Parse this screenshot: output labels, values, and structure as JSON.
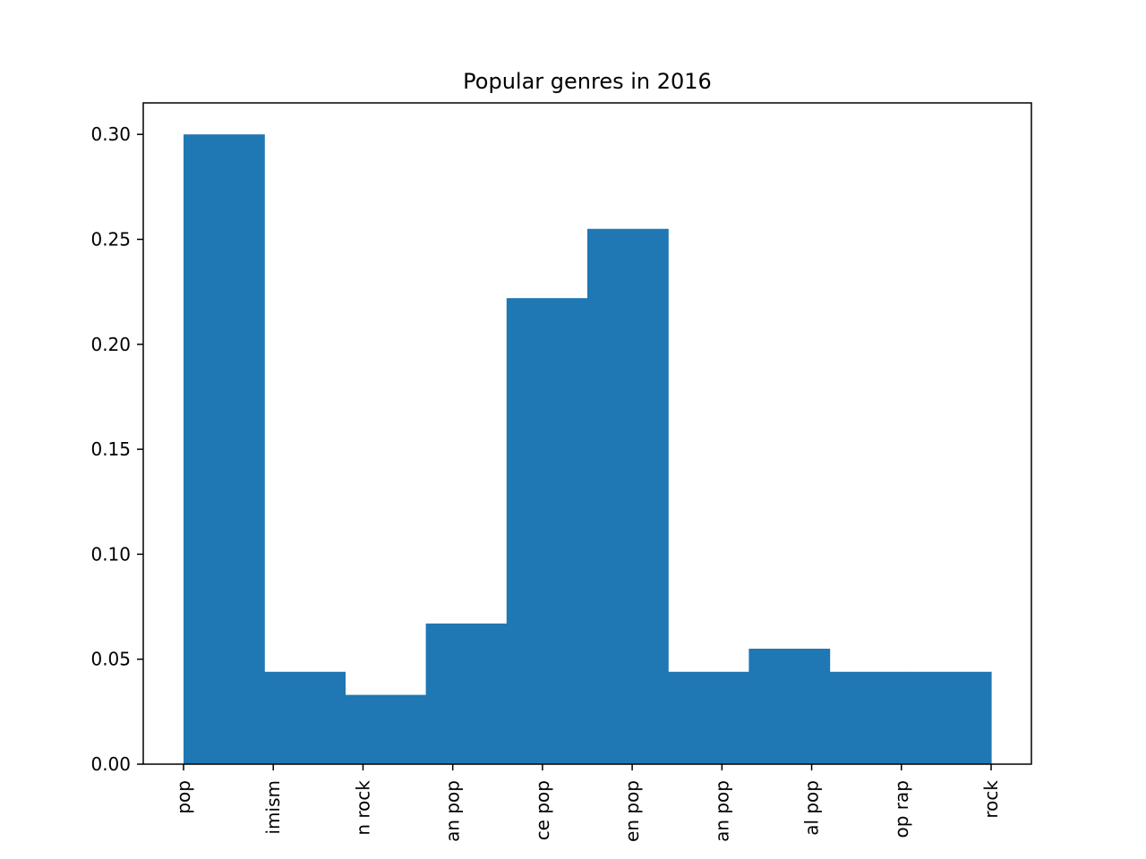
{
  "chart_data": {
    "type": "bar",
    "title": "Popular genres in 2016",
    "xlabel": "",
    "ylabel": "",
    "ylim": [
      0,
      0.315
    ],
    "y_ticks": [
      "0.00",
      "0.05",
      "0.10",
      "0.15",
      "0.20",
      "0.25",
      "0.30"
    ],
    "x_tick_labels": [
      "pop",
      "imism",
      "n rock",
      "an pop",
      "ce pop",
      "en pop",
      "an pop",
      "al pop",
      "op rap",
      "rock"
    ],
    "values": [
      0.3,
      0.044,
      0.033,
      0.067,
      0.222,
      0.255,
      0.044,
      0.055,
      0.044,
      0.044
    ],
    "bar_color": "#1f77b4",
    "grid": false,
    "legend": "none"
  }
}
